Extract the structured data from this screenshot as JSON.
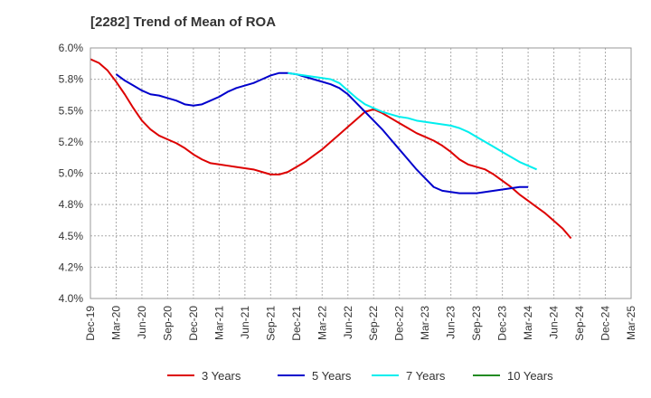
{
  "chart_data": {
    "type": "line",
    "title": "[2282]  Trend of Mean of ROA",
    "xlabel": "",
    "ylabel": "",
    "ylim": [
      4.0,
      6.0
    ],
    "y_ticks": [
      4.0,
      4.25,
      4.5,
      4.75,
      5.0,
      5.25,
      5.5,
      5.75,
      6.0
    ],
    "y_tick_labels": [
      "4.0%",
      "4.2%",
      "4.5%",
      "4.8%",
      "5.0%",
      "5.2%",
      "5.5%",
      "5.8%",
      "6.0%"
    ],
    "x_tick_labels": [
      "Dec-19",
      "Mar-20",
      "Jun-20",
      "Sep-20",
      "Dec-20",
      "Mar-21",
      "Jun-21",
      "Sep-21",
      "Dec-21",
      "Mar-22",
      "Jun-22",
      "Sep-22",
      "Dec-22",
      "Mar-23",
      "Jun-23",
      "Sep-23",
      "Dec-23",
      "Mar-24",
      "Jun-24",
      "Sep-24",
      "Dec-24",
      "Mar-25"
    ],
    "months_total": 63,
    "grid": true,
    "legend_position": "bottom",
    "series": [
      {
        "name": "3 Years",
        "color": "#dd0000",
        "start_month": 0,
        "values": [
          5.91,
          5.88,
          5.82,
          5.73,
          5.63,
          5.52,
          5.42,
          5.35,
          5.3,
          5.27,
          5.24,
          5.2,
          5.15,
          5.11,
          5.08,
          5.07,
          5.06,
          5.05,
          5.04,
          5.03,
          5.01,
          4.99,
          4.99,
          5.01,
          5.05,
          5.09,
          5.14,
          5.19,
          5.25,
          5.31,
          5.37,
          5.43,
          5.49,
          5.51,
          5.48,
          5.44,
          5.4,
          5.36,
          5.32,
          5.29,
          5.26,
          5.22,
          5.17,
          5.11,
          5.07,
          5.05,
          5.03,
          4.99,
          4.94,
          4.89,
          4.83,
          4.78,
          4.73,
          4.68,
          4.62,
          4.56,
          4.48
        ]
      },
      {
        "name": "5 Years",
        "color": "#0000cc",
        "start_month": 3,
        "values": [
          5.79,
          5.74,
          5.7,
          5.66,
          5.63,
          5.62,
          5.6,
          5.58,
          5.55,
          5.54,
          5.55,
          5.58,
          5.61,
          5.65,
          5.68,
          5.7,
          5.72,
          5.75,
          5.78,
          5.8,
          5.8,
          5.79,
          5.77,
          5.75,
          5.73,
          5.71,
          5.68,
          5.63,
          5.56,
          5.49,
          5.42,
          5.35,
          5.27,
          5.19,
          5.11,
          5.03,
          4.96,
          4.89,
          4.86,
          4.85,
          4.84,
          4.84,
          4.84,
          4.85,
          4.86,
          4.87,
          4.88,
          4.89,
          4.89
        ]
      },
      {
        "name": "7 Years",
        "color": "#00eeee",
        "start_month": 23,
        "values": [
          5.8,
          5.79,
          5.78,
          5.77,
          5.76,
          5.75,
          5.72,
          5.66,
          5.6,
          5.55,
          5.52,
          5.49,
          5.47,
          5.45,
          5.44,
          5.42,
          5.41,
          5.4,
          5.39,
          5.38,
          5.36,
          5.33,
          5.29,
          5.25,
          5.21,
          5.17,
          5.13,
          5.09,
          5.06,
          5.03
        ]
      },
      {
        "name": "10 Years",
        "color": "#228b22",
        "start_month": 0,
        "values": []
      }
    ]
  }
}
